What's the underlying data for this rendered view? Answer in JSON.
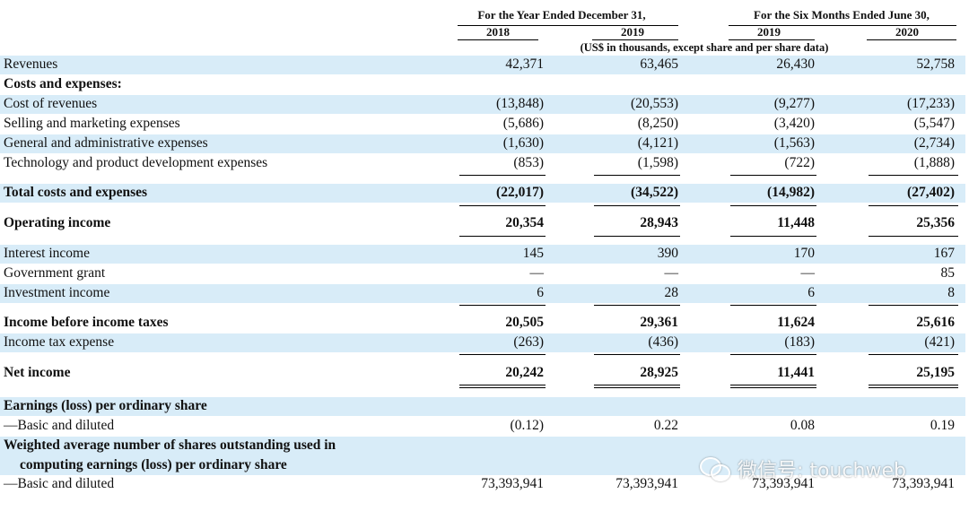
{
  "header": {
    "group1": "For the Year Ended December 31,",
    "group2": "For the Six Months Ended June 30,",
    "years": [
      "2018",
      "2019",
      "2019",
      "2020"
    ],
    "units": "(US$ in thousands, except share and per share data)"
  },
  "rows": {
    "revenues": {
      "label": "Revenues",
      "v": [
        "42,371",
        "63,465",
        "26,430",
        "52,758"
      ]
    },
    "costs_heading": {
      "label": "Costs and expenses:"
    },
    "cost_of_revenues": {
      "label": "Cost of revenues",
      "v": [
        "(13,848)",
        "(20,553)",
        "(9,277)",
        "(17,233)"
      ]
    },
    "selling": {
      "label": "Selling and marketing expenses",
      "v": [
        "(5,686)",
        "(8,250)",
        "(3,420)",
        "(5,547)"
      ]
    },
    "ga": {
      "label": "General and administrative expenses",
      "v": [
        "(1,630)",
        "(4,121)",
        "(1,563)",
        "(2,734)"
      ]
    },
    "tech": {
      "label": "Technology and product development expenses",
      "v": [
        "(853)",
        "(1,598)",
        "(722)",
        "(1,888)"
      ]
    },
    "total_costs": {
      "label": "Total costs and expenses",
      "v": [
        "(22,017)",
        "(34,522)",
        "(14,982)",
        "(27,402)"
      ]
    },
    "operating_income": {
      "label": "Operating income",
      "v": [
        "20,354",
        "28,943",
        "11,448",
        "25,356"
      ]
    },
    "interest_income": {
      "label": "Interest income",
      "v": [
        "145",
        "390",
        "170",
        "167"
      ]
    },
    "government_grant": {
      "label": "Government grant",
      "v": [
        "—",
        "—",
        "—",
        "85"
      ]
    },
    "investment_income": {
      "label": "Investment income",
      "v": [
        "6",
        "28",
        "6",
        "8"
      ]
    },
    "income_before_tax": {
      "label": "Income before income taxes",
      "v": [
        "20,505",
        "29,361",
        "11,624",
        "25,616"
      ]
    },
    "income_tax": {
      "label": "Income tax expense",
      "v": [
        "(263)",
        "(436)",
        "(183)",
        "(421)"
      ]
    },
    "net_income": {
      "label": "Net income",
      "v": [
        "20,242",
        "28,925",
        "11,441",
        "25,195"
      ]
    },
    "eps_heading": {
      "label": "Earnings (loss) per ordinary share"
    },
    "eps": {
      "label": "—Basic and diluted",
      "v": [
        "(0.12)",
        "0.22",
        "0.08",
        "0.19"
      ]
    },
    "wavg_heading_1": {
      "label": "Weighted average number of shares outstanding used in"
    },
    "wavg_heading_2": {
      "label": "computing earnings (loss) per ordinary share"
    },
    "wavg": {
      "label": "—Basic and diluted",
      "v": [
        "73,393,941",
        "73,393,941",
        "73,393,941",
        "73,393,941"
      ]
    }
  },
  "watermark": {
    "text": "微信号: touchweb",
    "icon": "wechat-icon"
  }
}
